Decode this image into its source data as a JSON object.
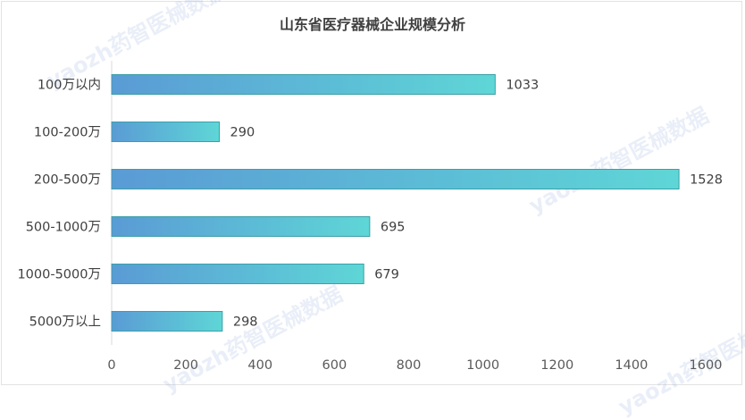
{
  "chart_data": {
    "type": "bar",
    "orientation": "horizontal",
    "title": "山东省医疗器械企业规模分析",
    "categories": [
      "100万以内",
      "100-200万",
      "200-500万",
      "500-1000万",
      "1000-5000万",
      "5000万以上"
    ],
    "values": [
      1033,
      290,
      1528,
      695,
      679,
      298
    ],
    "xlabel": "",
    "ylabel": "",
    "xlim": [
      0,
      1600
    ],
    "xticks": [
      0,
      200,
      400,
      600,
      800,
      1000,
      1200,
      1400,
      1600
    ],
    "grid": false,
    "legend": "none",
    "bar_gradient": [
      "#5a9bd5",
      "#5ed6d6"
    ],
    "bar_border": "#3aa0a8"
  },
  "watermark": "yaozh药智医械数据"
}
